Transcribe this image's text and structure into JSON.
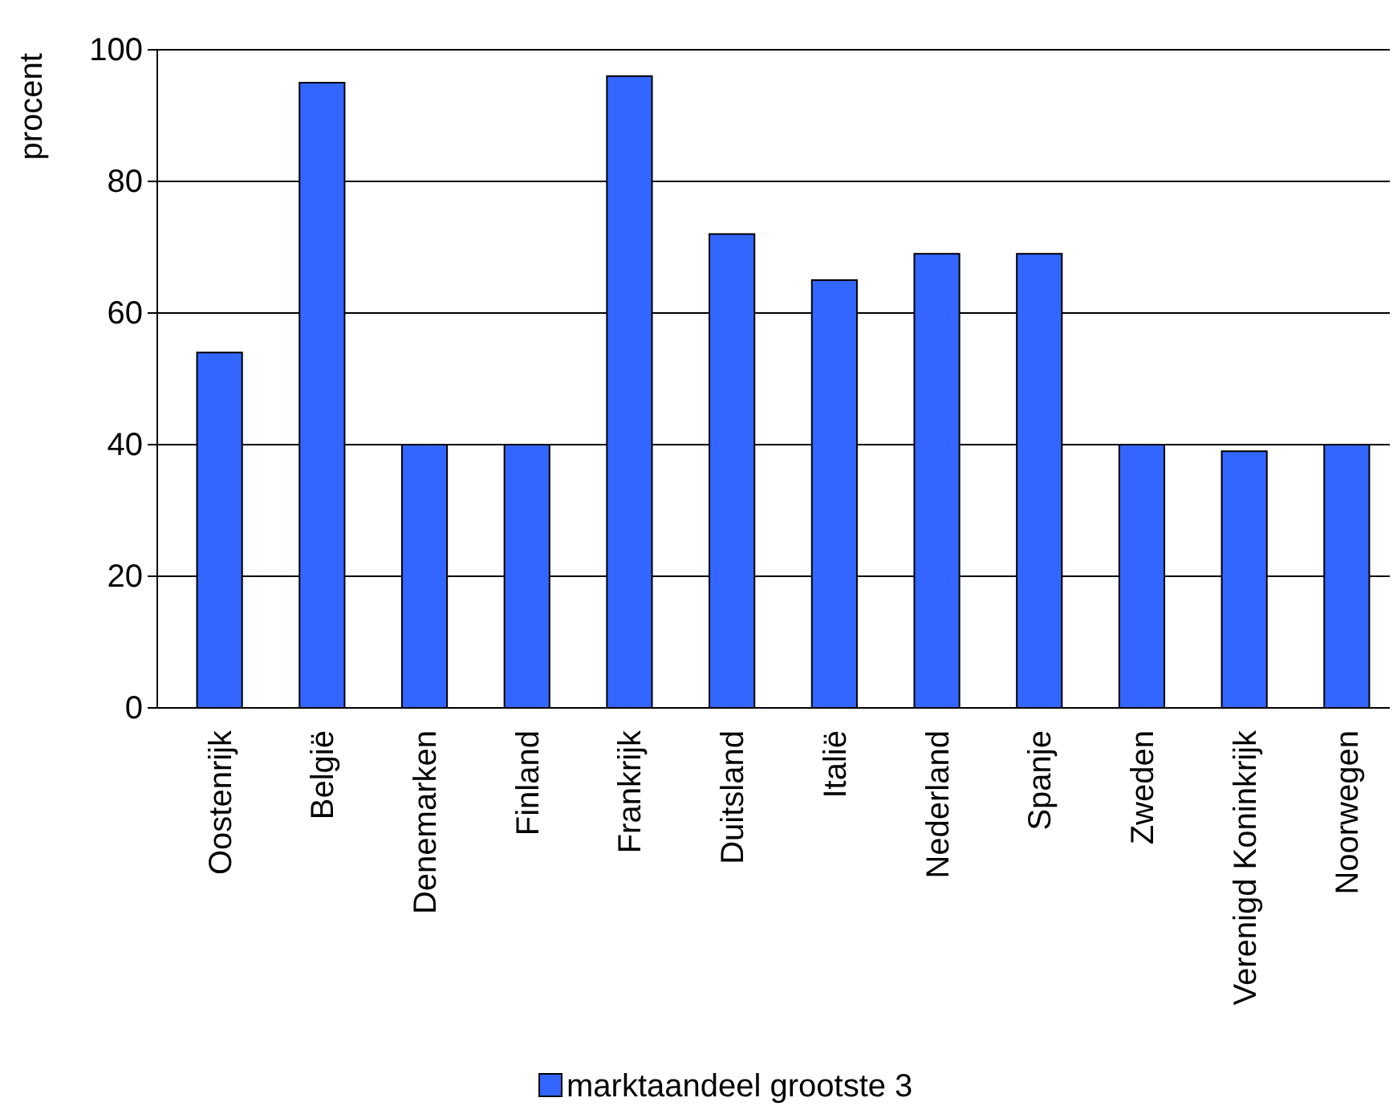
{
  "chart_data": {
    "type": "bar",
    "ylabel": "procent",
    "categories": [
      "Oostenrijk",
      "België",
      "Denemarken",
      "Finland",
      "Frankrijk",
      "Duitsland",
      "Italië",
      "Nederland",
      "Spanje",
      "Zweden",
      "Verenigd Koninkrijk",
      "Noorwegen"
    ],
    "series": [
      {
        "name": "marktaandeel grootste 3",
        "color": "#3366ff",
        "values": [
          54,
          95,
          40,
          40,
          96,
          72,
          65,
          69,
          69,
          40,
          39,
          40
        ]
      }
    ],
    "ylim": [
      0,
      100
    ],
    "yticks": [
      0,
      20,
      40,
      60,
      80,
      100
    ],
    "grid": "y",
    "legend": "bottom"
  }
}
